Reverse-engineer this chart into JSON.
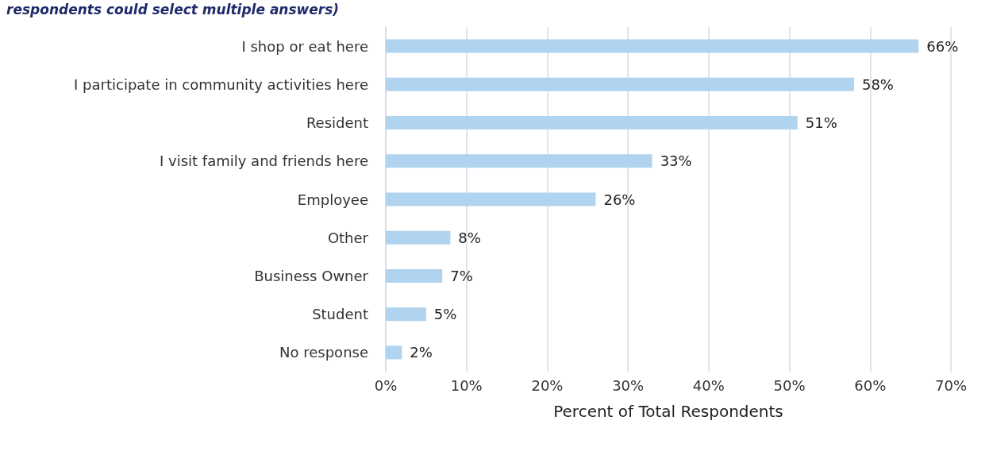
{
  "chart_data": {
    "type": "bar",
    "orientation": "horizontal",
    "title": "respondents could select multiple answers)",
    "xlabel": "Percent of Total Respondents",
    "categories": [
      "I shop or eat here",
      "I participate in community activities here",
      "Resident",
      "I visit family and friends here",
      "Employee",
      "Other",
      "Business Owner",
      "Student",
      "No response"
    ],
    "values": [
      66,
      58,
      51,
      33,
      26,
      8,
      7,
      5,
      2
    ],
    "color": "#b0d4ef",
    "value_labels": [
      "66%",
      "58%",
      "51%",
      "33%",
      "26%",
      "8%",
      "7%",
      "5%",
      "2%"
    ],
    "xlim": [
      0,
      70
    ],
    "xticks": [
      {
        "value": 0,
        "label": "0%"
      },
      {
        "value": 10,
        "label": "10%"
      },
      {
        "value": 20,
        "label": "20%"
      },
      {
        "value": 30,
        "label": "30%"
      },
      {
        "value": 40,
        "label": "40%"
      },
      {
        "value": 50,
        "label": "50%"
      },
      {
        "value": 60,
        "label": "60%"
      },
      {
        "value": 70,
        "label": "70%"
      }
    ],
    "grid": "x"
  }
}
